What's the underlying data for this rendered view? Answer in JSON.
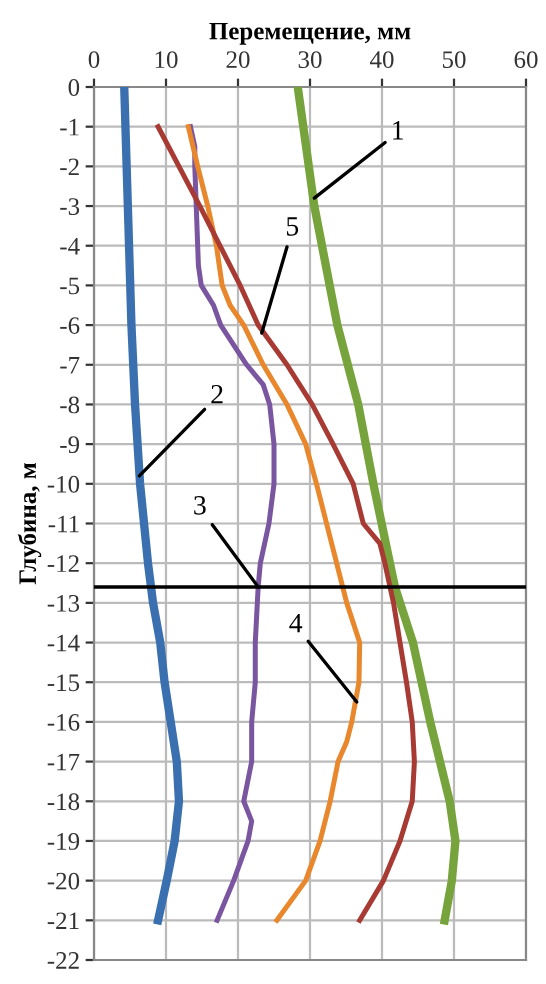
{
  "chart_data": {
    "type": "line",
    "xlabel": "Перемещение, мм",
    "ylabel": "Глубина, м",
    "xlim": [
      0,
      60
    ],
    "xticks": [
      0,
      10,
      20,
      30,
      40,
      50,
      60
    ],
    "ylim": [
      -22,
      0
    ],
    "yticks": [
      0,
      -1,
      -2,
      -3,
      -4,
      -5,
      -6,
      -7,
      -8,
      -9,
      -10,
      -11,
      -12,
      -13,
      -14,
      -15,
      -16,
      -17,
      -18,
      -19,
      -20,
      -21,
      -22
    ],
    "grid": true,
    "orientation": "horizontal",
    "line_style": "solid",
    "marker": "none",
    "series": [
      {
        "color": "#77a33c",
        "x": [
          0,
          -3,
          -6,
          -8,
          -10,
          -12,
          -12.6,
          -14,
          -16,
          -18,
          -19,
          -20,
          -21
        ],
        "values": [
          28.3,
          30.6,
          33.8,
          36.7,
          38.8,
          41.1,
          41.8,
          44.3,
          46.7,
          49.4,
          50.2,
          49.7,
          48.7
        ]
      },
      {
        "color": "#3a6fb0",
        "x": [
          0,
          -6,
          -8,
          -10,
          -12,
          -13,
          -14,
          -15,
          -17,
          -18,
          -19,
          -20,
          -21
        ],
        "values": [
          4.2,
          5.2,
          5.7,
          6.4,
          7.5,
          8.2,
          9.2,
          9.8,
          11.5,
          11.8,
          11.2,
          10.1,
          8.9
        ]
      },
      {
        "color": "#7a55a0",
        "x": [
          -1,
          -1.5,
          -2,
          -4.5,
          -5,
          -5.5,
          -6,
          -7,
          -7.5,
          -8,
          -9,
          -10,
          -11,
          -12,
          -12.6,
          -14,
          -15,
          -16,
          -17,
          -18,
          -18.5,
          -19,
          -20,
          -21
        ],
        "values": [
          13.4,
          14,
          14,
          14.5,
          14.9,
          16.6,
          17.6,
          21.2,
          23.5,
          24.4,
          25,
          25,
          24.3,
          23.1,
          22.8,
          22.4,
          22.4,
          21.9,
          21.9,
          20.8,
          21.9,
          21.4,
          19.4,
          17.1
        ]
      },
      {
        "color": "#e8872c",
        "x": [
          -1,
          -2,
          -3,
          -4,
          -5,
          -5.5,
          -6,
          -7,
          -8,
          -9,
          -10,
          -11,
          -12,
          -13,
          -14,
          -15,
          -16,
          -16.5,
          -17,
          -18,
          -19,
          -20,
          -21
        ],
        "values": [
          13.1,
          14.4,
          15.8,
          17,
          17.8,
          18.9,
          20.8,
          23.5,
          26.8,
          29.4,
          30.9,
          32.3,
          33.7,
          35.1,
          36.9,
          36.8,
          35.8,
          35.1,
          33.9,
          32.8,
          31.4,
          29.4,
          25.4
        ]
      },
      {
        "color": "#a83a34",
        "x": [
          -1,
          -3,
          -5,
          -6,
          -7,
          -8,
          -9,
          -10,
          -11,
          -11.5,
          -12,
          -13,
          -14,
          -15,
          -16,
          -17,
          -18,
          -19,
          -20,
          -21
        ],
        "values": [
          8.9,
          14.7,
          20.3,
          22.8,
          26.8,
          30.3,
          33.2,
          36,
          37.4,
          39.7,
          40.4,
          41.6,
          42.5,
          43.4,
          44.2,
          44.5,
          44.2,
          42.5,
          40.2,
          36.9
        ]
      }
    ],
    "ref_lines": [
      {
        "axis": "y",
        "value": -12.6,
        "color": "#000000"
      }
    ],
    "annotations": [
      {
        "text": "1",
        "x": 30.6,
        "y": -2.8
      },
      {
        "text": "5",
        "x": 23.3,
        "y": -6.2
      },
      {
        "text": "2",
        "x": 6.3,
        "y": -9.8
      },
      {
        "text": "3",
        "x": 22.8,
        "y": -12.6
      },
      {
        "text": "4",
        "x": 36.5,
        "y": -15.5
      }
    ]
  }
}
